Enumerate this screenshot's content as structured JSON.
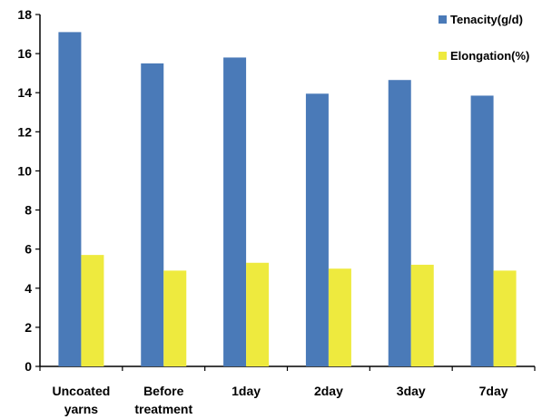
{
  "chart_data": {
    "type": "bar",
    "title": "",
    "xlabel": "",
    "ylabel": "",
    "categories": [
      [
        "Uncoated",
        "yarns"
      ],
      [
        "Before",
        "treatment"
      ],
      [
        "1day"
      ],
      [
        "2day"
      ],
      [
        "3day"
      ],
      [
        "7day"
      ]
    ],
    "series": [
      {
        "name": "Tenacity(g/d)",
        "color": "#4a7ab8",
        "values": [
          17.1,
          15.5,
          15.8,
          13.95,
          14.65,
          13.85
        ]
      },
      {
        "name": "Elongation(%)",
        "color": "#eeea3e",
        "values": [
          5.7,
          4.9,
          5.3,
          5.0,
          5.2,
          4.9
        ]
      }
    ],
    "ylim": [
      0,
      18
    ],
    "yticks": [
      0,
      2,
      4,
      6,
      8,
      10,
      12,
      14,
      16,
      18
    ],
    "grid": false,
    "legend_position": "top-right"
  }
}
